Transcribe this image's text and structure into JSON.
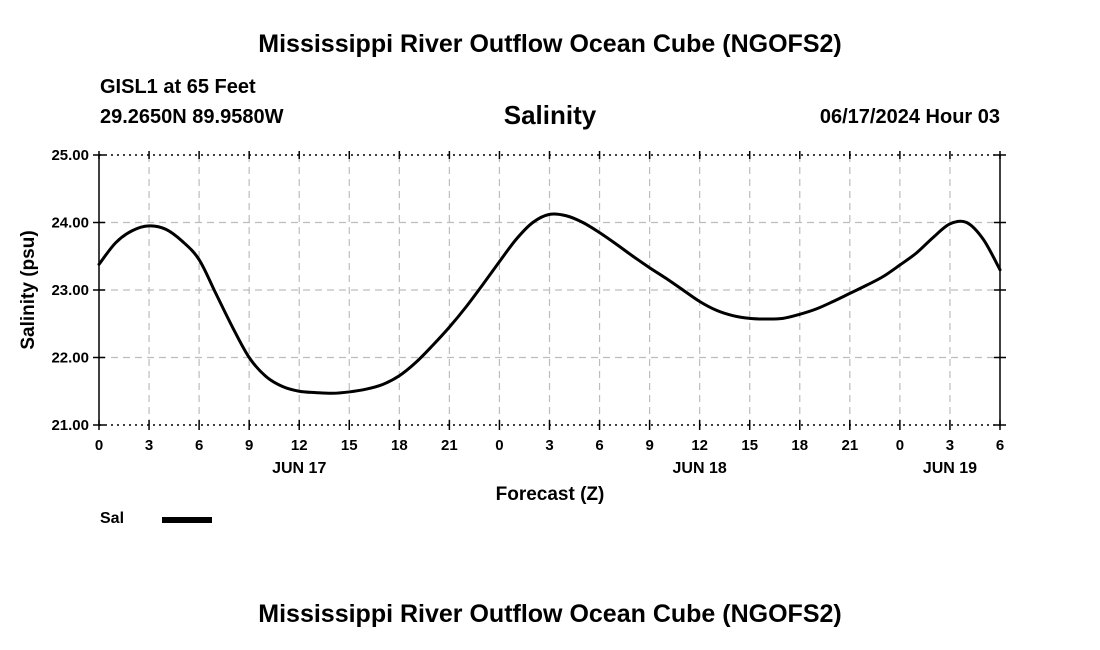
{
  "header": {
    "title": "Mississippi River Outflow Ocean Cube (NGOFS2)",
    "station": "GISL1 at 65 Feet",
    "coordinates": "29.2650N  89.9580W",
    "subtitle": "Salinity",
    "datetime": "06/17/2024 Hour 03"
  },
  "footer": {
    "title": "Mississippi River Outflow Ocean Cube (NGOFS2)"
  },
  "legend": {
    "label": "Sal"
  },
  "chart_data": {
    "type": "line",
    "title": "Salinity",
    "xlabel": "Forecast (Z)",
    "ylabel": "Salinity (psu)",
    "xlim": [
      0,
      54
    ],
    "ylim": [
      21.0,
      25.0
    ],
    "yticks": [
      21.0,
      22.0,
      23.0,
      24.0,
      25.0
    ],
    "ytick_labels": [
      "21.00",
      "22.00",
      "23.00",
      "24.00",
      "25.00"
    ],
    "xticks": [
      0,
      3,
      6,
      9,
      12,
      15,
      18,
      21,
      24,
      27,
      30,
      33,
      36,
      39,
      42,
      45,
      48,
      51,
      54
    ],
    "xtick_labels": [
      "0",
      "3",
      "6",
      "9",
      "12",
      "15",
      "18",
      "21",
      "0",
      "3",
      "6",
      "9",
      "12",
      "15",
      "18",
      "21",
      "0",
      "3",
      "6"
    ],
    "day_labels": [
      {
        "x": 12,
        "label": "JUN 17"
      },
      {
        "x": 36,
        "label": "JUN 18"
      },
      {
        "x": 51,
        "label": "JUN 19"
      }
    ],
    "grid": true,
    "series": [
      {
        "name": "Sal",
        "x": [
          0,
          1,
          2,
          3,
          4,
          5,
          6,
          7,
          8,
          9,
          10,
          11,
          12,
          13,
          14,
          15,
          16,
          17,
          18,
          19,
          20,
          21,
          22,
          23,
          24,
          25,
          26,
          27,
          28,
          29,
          30,
          31,
          32,
          33,
          34,
          35,
          36,
          37,
          38,
          39,
          40,
          41,
          42,
          43,
          44,
          45,
          46,
          47,
          48,
          49,
          50,
          51,
          52,
          53,
          54
        ],
        "values": [
          23.38,
          23.7,
          23.88,
          23.95,
          23.9,
          23.72,
          23.45,
          22.95,
          22.45,
          22.0,
          21.72,
          21.57,
          21.5,
          21.48,
          21.47,
          21.49,
          21.53,
          21.6,
          21.73,
          21.93,
          22.18,
          22.45,
          22.75,
          23.08,
          23.42,
          23.75,
          24.0,
          24.12,
          24.1,
          24.0,
          23.85,
          23.68,
          23.5,
          23.33,
          23.17,
          23.0,
          22.83,
          22.7,
          22.62,
          22.58,
          22.57,
          22.58,
          22.64,
          22.72,
          22.83,
          22.95,
          23.07,
          23.2,
          23.37,
          23.55,
          23.78,
          23.98,
          24.0,
          23.75,
          23.3
        ]
      }
    ]
  }
}
